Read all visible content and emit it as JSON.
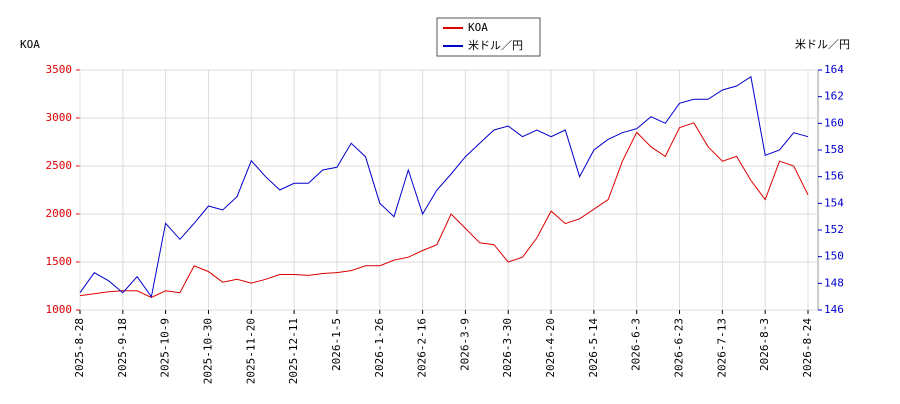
{
  "chart_data": {
    "type": "line",
    "y_label": "KOA",
    "y2_label": "米ドル／円",
    "categories": [
      "2025-8-28",
      null,
      null,
      "2025-9-18",
      null,
      null,
      "2025-10-9",
      null,
      null,
      "2025-10-30",
      null,
      null,
      "2025-11-20",
      null,
      null,
      "2025-12-11",
      null,
      null,
      "2026-1-5",
      null,
      null,
      "2026-1-26",
      null,
      null,
      "2026-2-16",
      null,
      null,
      "2026-3-9",
      null,
      null,
      "2026-3-30",
      null,
      null,
      "2026-4-20",
      null,
      null,
      "2026-5-14",
      null,
      null,
      "2026-6-3",
      null,
      null,
      "2026-6-23",
      null,
      null,
      "2026-7-13",
      null,
      null,
      "2026-8-3",
      null,
      null,
      "2026-8-24"
    ],
    "series": [
      {
        "name": "KOA",
        "color": "#dd0000",
        "axis": "y",
        "values": [
          1150,
          1170,
          1190,
          1200,
          1200,
          1130,
          1200,
          1180,
          1460,
          1400,
          1290,
          1320,
          1280,
          1320,
          1370,
          1370,
          1360,
          1380,
          1390,
          1410,
          1460,
          1460,
          1520,
          1550,
          1620,
          1680,
          2000,
          1850,
          1700,
          1680,
          1500,
          1550,
          1750,
          2030,
          1900,
          1950,
          2050,
          2150,
          2550,
          2850,
          2700,
          2600,
          2900,
          2950,
          2700,
          2550,
          2600,
          2350,
          2150,
          2550,
          2500,
          2200
        ]
      },
      {
        "name": "米ドル／円",
        "color": "#0000cc",
        "axis": "y2",
        "values": [
          147.3,
          148.8,
          148.2,
          147.3,
          148.5,
          147.0,
          152.5,
          151.3,
          152.5,
          153.8,
          153.5,
          154.5,
          157.2,
          156.0,
          155.0,
          155.5,
          155.5,
          156.5,
          156.7,
          158.5,
          157.5,
          154.0,
          153.0,
          156.5,
          153.2,
          155.0,
          156.2,
          157.5,
          158.5,
          159.5,
          159.8,
          159.0,
          159.5,
          159.0,
          159.5,
          156.0,
          158.0,
          158.8,
          159.3,
          159.6,
          160.5,
          160.0,
          161.5,
          161.8,
          161.8,
          162.5,
          162.8,
          163.5,
          157.6,
          158.0,
          159.3,
          159.0
        ]
      }
    ],
    "ylim": [
      1000,
      3500
    ],
    "yticks": [
      1000,
      1500,
      2000,
      2500,
      3000,
      3500
    ],
    "y2lim": [
      146,
      164
    ],
    "y2ticks": [
      146,
      148,
      150,
      152,
      154,
      156,
      158,
      160,
      162,
      164
    ],
    "grid": true,
    "legend": "top"
  }
}
